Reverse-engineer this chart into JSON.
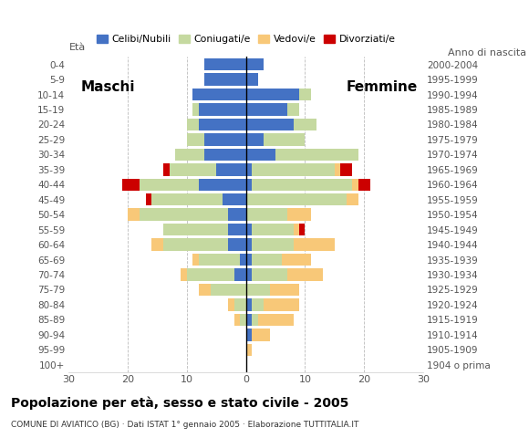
{
  "age_groups": [
    "100+",
    "95-99",
    "90-94",
    "85-89",
    "80-84",
    "75-79",
    "70-74",
    "65-69",
    "60-64",
    "55-59",
    "50-54",
    "45-49",
    "40-44",
    "35-39",
    "30-34",
    "25-29",
    "20-24",
    "15-19",
    "10-14",
    "5-9",
    "0-4"
  ],
  "birth_years": [
    "1904 o prima",
    "1905-1909",
    "1910-1914",
    "1915-1919",
    "1920-1924",
    "1925-1929",
    "1930-1934",
    "1935-1939",
    "1940-1944",
    "1945-1949",
    "1950-1954",
    "1955-1959",
    "1960-1964",
    "1965-1969",
    "1970-1974",
    "1975-1979",
    "1980-1984",
    "1985-1989",
    "1990-1994",
    "1995-1999",
    "2000-2004"
  ],
  "colors": {
    "celibi": "#4472c4",
    "coniugati": "#c5d9a0",
    "vedovi": "#f8c878",
    "divorziati": "#cc0000"
  },
  "maschi": {
    "celibi": [
      0,
      0,
      0,
      0,
      0,
      0,
      2,
      1,
      3,
      3,
      3,
      4,
      8,
      5,
      7,
      7,
      8,
      8,
      9,
      7,
      7
    ],
    "coniugati": [
      0,
      0,
      0,
      1,
      2,
      6,
      8,
      7,
      11,
      11,
      15,
      12,
      10,
      8,
      5,
      3,
      2,
      1,
      0,
      0,
      0
    ],
    "vedovi": [
      0,
      0,
      0,
      1,
      1,
      2,
      1,
      1,
      2,
      0,
      2,
      0,
      0,
      0,
      0,
      0,
      0,
      0,
      0,
      0,
      0
    ],
    "divorziati": [
      0,
      0,
      0,
      0,
      0,
      0,
      0,
      0,
      0,
      0,
      0,
      1,
      3,
      1,
      0,
      0,
      0,
      0,
      0,
      0,
      0
    ]
  },
  "femmine": {
    "celibi": [
      0,
      0,
      1,
      1,
      1,
      0,
      1,
      1,
      1,
      1,
      0,
      0,
      1,
      1,
      5,
      3,
      8,
      7,
      9,
      2,
      3
    ],
    "coniugati": [
      0,
      0,
      0,
      1,
      2,
      4,
      6,
      5,
      7,
      7,
      7,
      17,
      17,
      14,
      14,
      7,
      4,
      2,
      2,
      0,
      0
    ],
    "vedovi": [
      0,
      1,
      3,
      6,
      6,
      5,
      6,
      5,
      7,
      1,
      4,
      2,
      1,
      1,
      0,
      0,
      0,
      0,
      0,
      0,
      0
    ],
    "divorziati": [
      0,
      0,
      0,
      0,
      0,
      0,
      0,
      0,
      0,
      1,
      0,
      0,
      2,
      2,
      0,
      0,
      0,
      0,
      0,
      0,
      0
    ]
  },
  "title": "Popolazione per età, sesso e stato civile - 2005",
  "subtitle": "COMUNE DI AVIATICO (BG) · Dati ISTAT 1° gennaio 2005 · Elaborazione TUTTITALIA.IT",
  "xlabel_left": "Maschi",
  "xlabel_right": "Femmine",
  "ylabel_left": "Età",
  "ylabel_right": "Anno di nascita",
  "xlim": 30,
  "legend_labels": [
    "Celibi/Nubili",
    "Coniugati/e",
    "Vedovi/e",
    "Divorziati/e"
  ],
  "bg_color": "#ffffff",
  "plot_bg_color": "#ffffff",
  "grid_color": "#aaaaaa",
  "bar_height": 0.82,
  "title_fontsize": 10,
  "subtitle_fontsize": 6.5,
  "tick_fontsize": 7.5,
  "label_fontsize": 8,
  "maschi_femmine_fontsize": 11
}
